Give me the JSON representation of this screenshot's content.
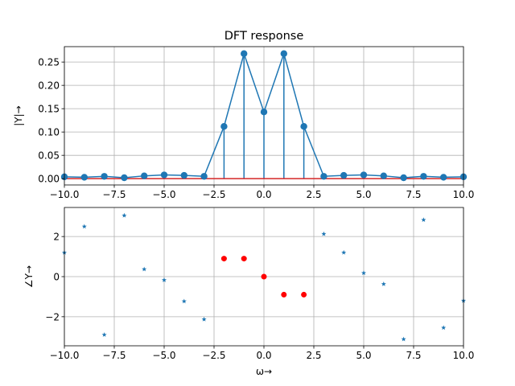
{
  "chart_data": [
    {
      "type": "stem",
      "title": "DFT response",
      "xlabel": "ω→",
      "ylabel": "|Y|→",
      "xlim": [
        -10,
        10
      ],
      "ylim": [
        -0.0135,
        0.283
      ],
      "xticks": [
        -10,
        -7.5,
        -5,
        -2.5,
        0,
        2.5,
        5,
        7.5,
        10
      ],
      "xtick_labels": [
        "−10.0",
        "−7.5",
        "−5.0",
        "−2.5",
        "0.0",
        "2.5",
        "5.0",
        "7.5",
        "10.0"
      ],
      "yticks": [
        0,
        0.05,
        0.1,
        0.15,
        0.2,
        0.25
      ],
      "ytick_labels": [
        "0.00",
        "0.05",
        "0.10",
        "0.15",
        "0.20",
        "0.25"
      ],
      "grid": true,
      "x": [
        -10,
        -9,
        -8,
        -7,
        -6,
        -5,
        -4,
        -3,
        -2,
        -1,
        0,
        1,
        2,
        3,
        4,
        5,
        6,
        7,
        8,
        9,
        10
      ],
      "values": [
        0.004,
        0.003,
        0.005,
        0.002,
        0.006,
        0.008,
        0.007,
        0.005,
        0.112,
        0.268,
        0.143,
        0.268,
        0.112,
        0.005,
        0.007,
        0.008,
        0.006,
        0.002,
        0.005,
        0.003,
        0.004
      ],
      "highlight_x": [
        -2,
        -1,
        0,
        1,
        2
      ],
      "colors": {
        "series": "#1f77b4",
        "baseline": "#d62728"
      }
    },
    {
      "type": "scatter",
      "xlabel": "ω→",
      "ylabel": "∠Y→",
      "xlim": [
        -10,
        10
      ],
      "ylim": [
        -3.45,
        3.45
      ],
      "xticks": [
        -10,
        -7.5,
        -5,
        -2.5,
        0,
        2.5,
        5,
        7.5,
        10
      ],
      "xtick_labels": [
        "−10.0",
        "−7.5",
        "−5.0",
        "−2.5",
        "0.0",
        "2.5",
        "5.0",
        "7.5",
        "10.0"
      ],
      "yticks": [
        -2,
        0,
        2
      ],
      "ytick_labels": [
        "−2",
        "0",
        "2"
      ],
      "grid": true,
      "series": [
        {
          "marker": "star",
          "color": "#1f77b4",
          "x": [
            -10,
            -9,
            -8,
            -7,
            -6,
            -5,
            -4,
            -3,
            3,
            4,
            5,
            6,
            7,
            8,
            9,
            10
          ],
          "y": [
            1.2,
            2.5,
            -2.9,
            3.05,
            0.37,
            -0.17,
            -1.23,
            -2.13,
            2.13,
            1.2,
            0.18,
            -0.37,
            -3.12,
            2.83,
            -2.55,
            -1.2
          ]
        },
        {
          "marker": "circle",
          "color": "#ff0000",
          "x": [
            -2,
            -1,
            0,
            1,
            2
          ],
          "y": [
            0.9,
            0.9,
            0.0,
            -0.9,
            -0.9
          ]
        }
      ]
    }
  ]
}
